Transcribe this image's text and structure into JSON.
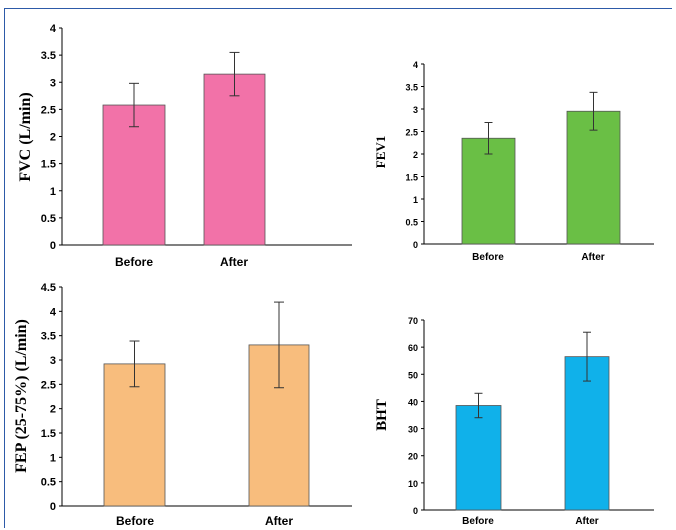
{
  "chart_data": [
    {
      "type": "bar",
      "ylabel": "FVC (L/min)",
      "categories": [
        "Before",
        "After"
      ],
      "values": [
        2.58,
        3.15
      ],
      "errors": [
        0.4,
        0.4
      ],
      "ylim": [
        0,
        4
      ],
      "yticks": [
        "0",
        "0.5",
        "1",
        "1.5",
        "2",
        "2.5",
        "3",
        "3.5",
        "4"
      ],
      "color": "#f272a8"
    },
    {
      "type": "bar",
      "ylabel": "FEV1",
      "categories": [
        "Before",
        "After"
      ],
      "values": [
        2.35,
        2.95
      ],
      "errors": [
        0.35,
        0.42
      ],
      "ylim": [
        0,
        4
      ],
      "yticks": [
        "0",
        "0.5",
        "1",
        "1.5",
        "2",
        "2.5",
        "3",
        "3.5",
        "4"
      ],
      "color": "#6abf45"
    },
    {
      "type": "bar",
      "ylabel": "FEP (25-75%) (L/min)",
      "categories": [
        "Before",
        "After"
      ],
      "values": [
        2.92,
        3.31
      ],
      "errors": [
        0.47,
        0.88
      ],
      "ylim": [
        0,
        4.5
      ],
      "yticks": [
        "0",
        "0.5",
        "1",
        "1.5",
        "2",
        "2.5",
        "3",
        "3.5",
        "4",
        "4.5"
      ],
      "color": "#f8bd7d"
    },
    {
      "type": "bar",
      "ylabel": "BHT",
      "categories": [
        "Before",
        "After"
      ],
      "values": [
        38.5,
        56.5
      ],
      "errors": [
        4.5,
        9
      ],
      "ylim": [
        0,
        70
      ],
      "yticks": [
        "0",
        "10",
        "20",
        "30",
        "40",
        "50",
        "60",
        "70"
      ],
      "color": "#10b1ea"
    }
  ]
}
